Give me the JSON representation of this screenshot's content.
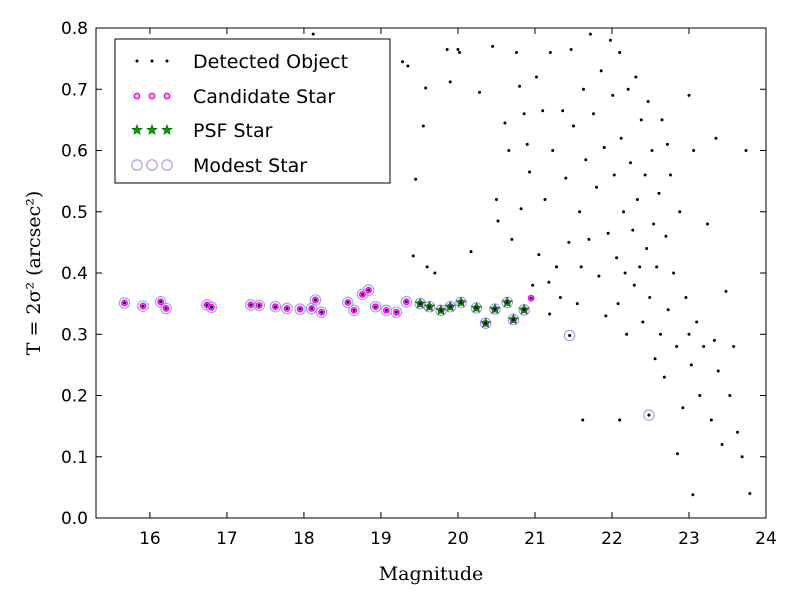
{
  "chart_data": {
    "type": "scatter",
    "xlabel": "Magnitude",
    "ylabel": "T = 2σ² (arcsec²)",
    "xlim": [
      15.3,
      24.0
    ],
    "ylim": [
      0.0,
      0.8
    ],
    "xticks": [
      16,
      17,
      18,
      19,
      20,
      21,
      22,
      23,
      24
    ],
    "yticks": [
      0.0,
      0.1,
      0.2,
      0.3,
      0.4,
      0.5,
      0.6,
      0.7,
      0.8
    ],
    "legend_position": "top-left",
    "grid": false,
    "series": [
      {
        "name": "Detected Object",
        "marker": "dot",
        "color": "#000000",
        "points": [
          [
            15.67,
            0.351
          ],
          [
            15.91,
            0.346
          ],
          [
            16.14,
            0.353
          ],
          [
            16.21,
            0.342
          ],
          [
            16.74,
            0.348
          ],
          [
            16.8,
            0.344
          ],
          [
            17.31,
            0.348
          ],
          [
            17.42,
            0.347
          ],
          [
            17.63,
            0.345
          ],
          [
            17.78,
            0.342
          ],
          [
            17.95,
            0.341
          ],
          [
            18.1,
            0.342
          ],
          [
            18.15,
            0.356
          ],
          [
            18.23,
            0.336
          ],
          [
            18.57,
            0.352
          ],
          [
            18.65,
            0.339
          ],
          [
            18.76,
            0.365
          ],
          [
            18.84,
            0.372
          ],
          [
            18.93,
            0.345
          ],
          [
            19.07,
            0.339
          ],
          [
            19.2,
            0.336
          ],
          [
            19.33,
            0.353
          ],
          [
            19.51,
            0.35
          ],
          [
            19.63,
            0.345
          ],
          [
            19.78,
            0.339
          ],
          [
            19.9,
            0.345
          ],
          [
            20.04,
            0.352
          ],
          [
            20.24,
            0.343
          ],
          [
            20.36,
            0.318
          ],
          [
            20.48,
            0.341
          ],
          [
            20.64,
            0.352
          ],
          [
            20.72,
            0.324
          ],
          [
            20.86,
            0.34
          ],
          [
            20.95,
            0.359
          ],
          [
            21.19,
            0.333
          ],
          [
            21.45,
            0.298
          ],
          [
            22.48,
            0.168
          ],
          [
            18.12,
            0.79
          ],
          [
            19.28,
            0.745
          ],
          [
            19.35,
            0.738
          ],
          [
            19.45,
            0.553
          ],
          [
            19.55,
            0.64
          ],
          [
            19.58,
            0.702
          ],
          [
            19.42,
            0.428
          ],
          [
            19.6,
            0.41
          ],
          [
            19.7,
            0.4
          ],
          [
            19.86,
            0.765
          ],
          [
            19.9,
            0.712
          ],
          [
            20.0,
            0.765
          ],
          [
            20.02,
            0.76
          ],
          [
            20.17,
            0.435
          ],
          [
            20.28,
            0.695
          ],
          [
            20.45,
            0.77
          ],
          [
            20.5,
            0.52
          ],
          [
            20.52,
            0.485
          ],
          [
            20.61,
            0.645
          ],
          [
            20.66,
            0.6
          ],
          [
            20.7,
            0.455
          ],
          [
            20.76,
            0.76
          ],
          [
            20.8,
            0.705
          ],
          [
            20.82,
            0.505
          ],
          [
            20.86,
            0.66
          ],
          [
            20.93,
            0.565
          ],
          [
            20.97,
            0.38
          ],
          [
            21.02,
            0.72
          ],
          [
            21.05,
            0.43
          ],
          [
            21.1,
            0.665
          ],
          [
            21.13,
            0.52
          ],
          [
            21.18,
            0.385
          ],
          [
            21.2,
            0.76
          ],
          [
            21.23,
            0.6
          ],
          [
            21.28,
            0.41
          ],
          [
            21.33,
            0.36
          ],
          [
            21.36,
            0.665
          ],
          [
            21.4,
            0.555
          ],
          [
            21.44,
            0.45
          ],
          [
            21.47,
            0.765
          ],
          [
            21.5,
            0.64
          ],
          [
            21.55,
            0.35
          ],
          [
            21.58,
            0.5
          ],
          [
            21.6,
            0.41
          ],
          [
            21.63,
            0.7
          ],
          [
            21.66,
            0.585
          ],
          [
            21.7,
            0.455
          ],
          [
            21.72,
            0.79
          ],
          [
            21.76,
            0.66
          ],
          [
            21.8,
            0.54
          ],
          [
            21.83,
            0.395
          ],
          [
            21.86,
            0.73
          ],
          [
            21.9,
            0.605
          ],
          [
            21.92,
            0.33
          ],
          [
            21.95,
            0.465
          ],
          [
            21.98,
            0.78
          ],
          [
            22.01,
            0.69
          ],
          [
            22.03,
            0.56
          ],
          [
            22.06,
            0.425
          ],
          [
            22.08,
            0.35
          ],
          [
            22.1,
            0.76
          ],
          [
            22.12,
            0.62
          ],
          [
            22.15,
            0.5
          ],
          [
            22.17,
            0.4
          ],
          [
            22.19,
            0.3
          ],
          [
            22.21,
            0.7
          ],
          [
            22.24,
            0.58
          ],
          [
            22.27,
            0.47
          ],
          [
            22.29,
            0.38
          ],
          [
            22.31,
            0.72
          ],
          [
            22.33,
            0.52
          ],
          [
            22.36,
            0.41
          ],
          [
            22.38,
            0.65
          ],
          [
            22.4,
            0.32
          ],
          [
            22.43,
            0.56
          ],
          [
            22.45,
            0.44
          ],
          [
            22.47,
            0.68
          ],
          [
            22.49,
            0.36
          ],
          [
            22.52,
            0.6
          ],
          [
            22.54,
            0.48
          ],
          [
            22.56,
            0.26
          ],
          [
            22.58,
            0.41
          ],
          [
            22.61,
            0.53
          ],
          [
            22.63,
            0.3
          ],
          [
            22.65,
            0.65
          ],
          [
            22.68,
            0.23
          ],
          [
            22.7,
            0.46
          ],
          [
            22.73,
            0.34
          ],
          [
            22.76,
            0.56
          ],
          [
            22.8,
            0.4
          ],
          [
            22.84,
            0.28
          ],
          [
            22.88,
            0.5
          ],
          [
            22.92,
            0.18
          ],
          [
            22.96,
            0.36
          ],
          [
            23.0,
            0.3
          ],
          [
            23.03,
            0.25
          ],
          [
            23.06,
            0.6
          ],
          [
            23.1,
            0.32
          ],
          [
            23.14,
            0.2
          ],
          [
            23.19,
            0.28
          ],
          [
            23.24,
            0.48
          ],
          [
            23.29,
            0.16
          ],
          [
            23.33,
            0.29
          ],
          [
            23.38,
            0.24
          ],
          [
            23.43,
            0.12
          ],
          [
            23.48,
            0.37
          ],
          [
            23.53,
            0.2
          ],
          [
            23.58,
            0.28
          ],
          [
            23.63,
            0.14
          ],
          [
            23.69,
            0.1
          ],
          [
            23.74,
            0.6
          ],
          [
            23.79,
            0.04
          ],
          [
            23.05,
            0.038
          ],
          [
            22.85,
            0.105
          ],
          [
            22.1,
            0.16
          ],
          [
            23.35,
            0.62
          ],
          [
            23.0,
            0.69
          ],
          [
            22.72,
            0.61
          ],
          [
            21.62,
            0.16
          ],
          [
            20.9,
            0.61
          ]
        ]
      },
      {
        "name": "Candidate Star",
        "marker": "circle",
        "color": "#ff00ff",
        "points": [
          [
            15.67,
            0.351
          ],
          [
            15.91,
            0.346
          ],
          [
            16.14,
            0.353
          ],
          [
            16.21,
            0.342
          ],
          [
            16.74,
            0.348
          ],
          [
            16.8,
            0.344
          ],
          [
            17.31,
            0.348
          ],
          [
            17.42,
            0.347
          ],
          [
            17.63,
            0.345
          ],
          [
            17.78,
            0.342
          ],
          [
            17.95,
            0.341
          ],
          [
            18.1,
            0.342
          ],
          [
            18.15,
            0.356
          ],
          [
            18.23,
            0.336
          ],
          [
            18.57,
            0.352
          ],
          [
            18.65,
            0.339
          ],
          [
            18.76,
            0.365
          ],
          [
            18.84,
            0.372
          ],
          [
            18.93,
            0.345
          ],
          [
            19.07,
            0.339
          ],
          [
            19.2,
            0.336
          ],
          [
            19.33,
            0.353
          ],
          [
            19.51,
            0.35
          ],
          [
            19.63,
            0.345
          ],
          [
            19.78,
            0.339
          ],
          [
            19.9,
            0.345
          ],
          [
            20.04,
            0.352
          ],
          [
            20.24,
            0.343
          ],
          [
            20.36,
            0.318
          ],
          [
            20.48,
            0.341
          ],
          [
            20.64,
            0.352
          ],
          [
            20.72,
            0.324
          ],
          [
            20.86,
            0.34
          ],
          [
            20.95,
            0.359
          ]
        ]
      },
      {
        "name": "PSF Star",
        "marker": "star",
        "color": "#00a000",
        "points": [
          [
            19.51,
            0.35
          ],
          [
            19.63,
            0.345
          ],
          [
            19.78,
            0.339
          ],
          [
            19.9,
            0.345
          ],
          [
            20.04,
            0.352
          ],
          [
            20.24,
            0.343
          ],
          [
            20.36,
            0.318
          ],
          [
            20.48,
            0.341
          ],
          [
            20.64,
            0.352
          ],
          [
            20.72,
            0.324
          ],
          [
            20.86,
            0.34
          ]
        ]
      },
      {
        "name": "Modest Star",
        "marker": "open-circle",
        "color": "#9b9bf2",
        "points": [
          [
            15.67,
            0.351
          ],
          [
            15.91,
            0.346
          ],
          [
            16.14,
            0.353
          ],
          [
            16.21,
            0.342
          ],
          [
            16.74,
            0.348
          ],
          [
            16.8,
            0.344
          ],
          [
            17.31,
            0.348
          ],
          [
            17.42,
            0.347
          ],
          [
            17.63,
            0.345
          ],
          [
            17.78,
            0.342
          ],
          [
            17.95,
            0.341
          ],
          [
            18.1,
            0.342
          ],
          [
            18.15,
            0.356
          ],
          [
            18.23,
            0.336
          ],
          [
            18.57,
            0.352
          ],
          [
            18.65,
            0.339
          ],
          [
            18.76,
            0.365
          ],
          [
            18.84,
            0.372
          ],
          [
            18.93,
            0.345
          ],
          [
            19.07,
            0.339
          ],
          [
            19.2,
            0.336
          ],
          [
            19.33,
            0.353
          ],
          [
            19.51,
            0.35
          ],
          [
            19.63,
            0.345
          ],
          [
            19.78,
            0.339
          ],
          [
            19.9,
            0.345
          ],
          [
            20.04,
            0.352
          ],
          [
            20.24,
            0.343
          ],
          [
            20.36,
            0.318
          ],
          [
            20.48,
            0.341
          ],
          [
            20.64,
            0.352
          ],
          [
            20.72,
            0.324
          ],
          [
            20.86,
            0.34
          ],
          [
            21.45,
            0.298
          ],
          [
            22.48,
            0.168
          ]
        ]
      }
    ]
  }
}
